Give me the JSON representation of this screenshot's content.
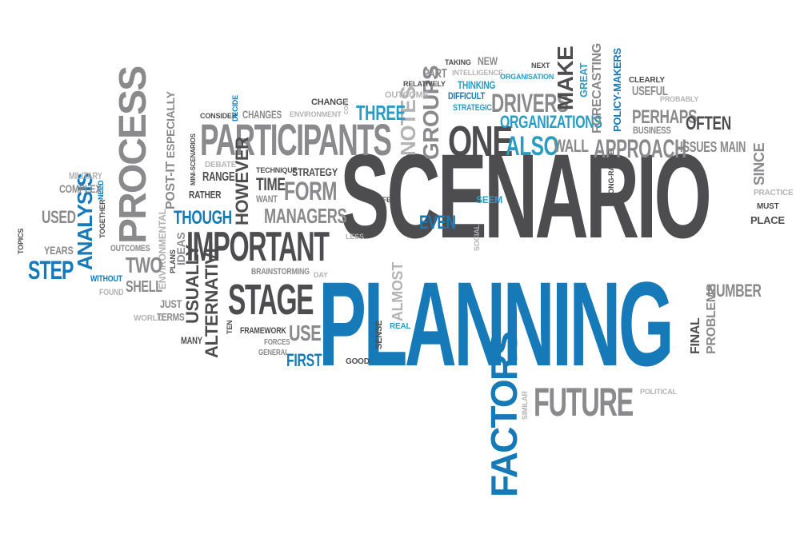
{
  "colors": {
    "dark_gray": "#4d4d4f",
    "mid_gray": "#8a8a8c",
    "light_gray": "#b3b3b5",
    "blue": "#1679b8",
    "teal": "#2a9cc4",
    "background": "#ffffff"
  },
  "words": {
    "scenario": "SCENARIO",
    "planning": "PLANNING",
    "participants": "PARTICIPANTS",
    "important": "IMPORTANT",
    "stage": "STAGE",
    "future": "FUTURE",
    "factors": "FACTORS",
    "process": "PROCESS",
    "one": "ONE",
    "approach": "APPROACH",
    "drivers": "DRIVERS",
    "organizations": "ORGANIZATIONS",
    "also": "ALSO",
    "wall": "WALL",
    "groups": "GROUPS",
    "notes": "NOTES",
    "three": "THREE",
    "make": "MAKE",
    "forecasting": "FORECASTING",
    "policy_makers": "POLICY-MAKERS",
    "great": "GREAT",
    "perhaps": "PERHAPS",
    "often": "OFTEN",
    "issues": "ISSUES",
    "main": "MAIN",
    "business": "BUSINESS",
    "useful": "USEFUL",
    "clearly": "CLEARLY",
    "probably": "PROBABLY",
    "since": "SINCE",
    "practice": "PRACTICE",
    "must": "MUST",
    "place": "PLACE",
    "number": "NUMBER",
    "final": "FINAL",
    "problems": "PROBLEMS",
    "political": "POLITICAL",
    "similar": "SIMILAR",
    "long_range": "LONG-RANGE",
    "seem": "SEEM",
    "even": "EVEN",
    "social": "SOCIAL",
    "almost": "ALMOST",
    "real": "REAL",
    "sense": "SENSE",
    "good": "GOOD",
    "first": "FIRST",
    "use": "USE",
    "general": "GENERAL",
    "forces": "FORCES",
    "framework": "FRAMEWORK",
    "ten": "TEN",
    "day": "DAY",
    "brainstorming": "BRAINSTORMING",
    "less": "LESS",
    "life": "LIFE",
    "managers": "MANAGERS",
    "form": "FORM",
    "want": "WANT",
    "strategy": "STRATEGY",
    "time": "TIME",
    "technique": "TECHNIQUE",
    "however": "HOWEVER",
    "range": "RANGE",
    "debate": "DEBATE",
    "rather": "RATHER",
    "though": "THOUGH",
    "mini_scenarios": "MINI-SCENARIOS",
    "post_it": "POST-IT",
    "especially": "ESPECIALLY",
    "consider": "CONSIDER",
    "decide": "DECIDE",
    "changes": "CHANGES",
    "environment": "ENVIRONMENT",
    "change": "CHANGE",
    "cope": "COPE",
    "outcome": "OUTCOME",
    "relatively": "RELATIVELY",
    "part": "PART",
    "taking": "TAKING",
    "intelligence": "INTELLIGENCE",
    "new": "NEW",
    "thinking": "THINKING",
    "difficult": "DIFFICULT",
    "strategic": "STRATEGIC",
    "next": "NEXT",
    "organisation": "ORGANISATION",
    "usually": "USUALLY",
    "alternative": "ALTERNATIVE",
    "many": "MANY",
    "just": "JUST",
    "terms": "TERMS",
    "world": "WORLD",
    "plans": "PLANS",
    "ideas": "IDEAS",
    "environmental": "ENVIRONMENTAL",
    "two": "TWO",
    "shell": "SHELL",
    "outcomes": "OUTCOMES",
    "found": "FOUND",
    "without": "WITHOUT",
    "step": "STEP",
    "years": "YEARS",
    "topics": "TOPICS",
    "used": "USED",
    "analysis": "ANALYSIS",
    "together": "TOGETHER",
    "need": "NEED",
    "military": "MILITARY",
    "complex": "COMPLEX"
  }
}
